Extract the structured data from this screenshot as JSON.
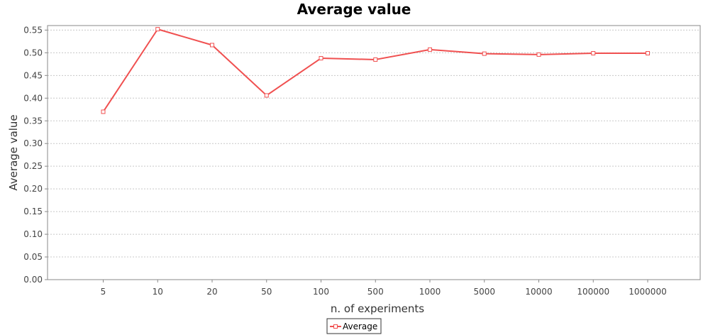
{
  "chart_data": {
    "type": "line",
    "title": "Average value",
    "xlabel": "n. of experiments",
    "ylabel": "Average value",
    "categories": [
      "5",
      "10",
      "20",
      "50",
      "100",
      "500",
      "1000",
      "5000",
      "10000",
      "100000",
      "1000000"
    ],
    "series": [
      {
        "name": "Average",
        "color": "#f05050",
        "values": [
          0.37,
          0.552,
          0.517,
          0.406,
          0.488,
          0.485,
          0.507,
          0.498,
          0.496,
          0.499,
          0.499
        ]
      }
    ],
    "ylim": [
      0.0,
      0.56
    ],
    "yticks": [
      "0.00",
      "0.05",
      "0.10",
      "0.15",
      "0.20",
      "0.25",
      "0.30",
      "0.35",
      "0.40",
      "0.45",
      "0.50",
      "0.55"
    ],
    "grid": true,
    "legend_position": "bottom-center"
  }
}
